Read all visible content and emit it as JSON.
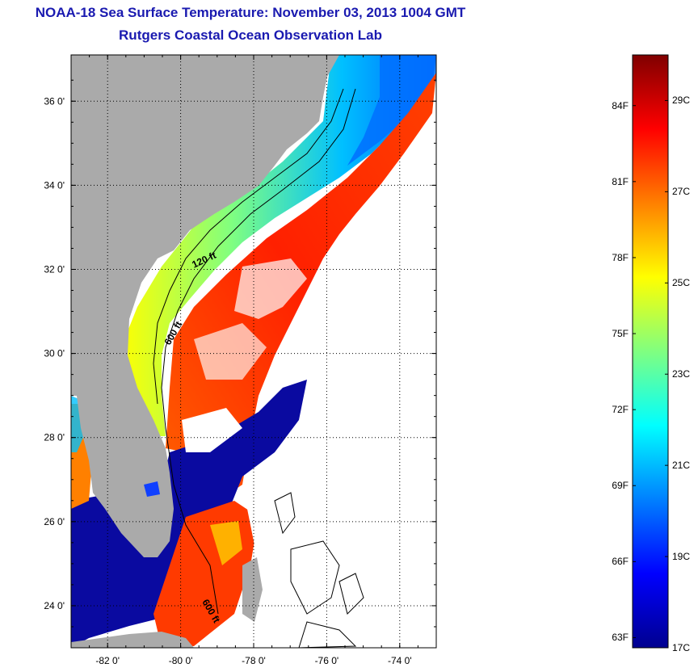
{
  "header": {
    "title": "NOAA-18 Sea Surface Temperature:  November 03, 2013 1004 GMT",
    "subtitle": "Rutgers Coastal Ocean Observation Lab"
  },
  "map": {
    "lon_range": [
      -83,
      -73
    ],
    "lat_range": [
      23,
      37.1
    ],
    "lat_ticks": [
      {
        "value": 36,
        "label": "36 0'"
      },
      {
        "value": 34,
        "label": "34 0'"
      },
      {
        "value": 32,
        "label": "32 0'"
      },
      {
        "value": 30,
        "label": "30 0'"
      },
      {
        "value": 28,
        "label": "28 0'"
      },
      {
        "value": 26,
        "label": "26 0'"
      },
      {
        "value": 24,
        "label": "24 0'"
      }
    ],
    "lon_ticks": [
      {
        "value": -82,
        "label": "-82 0'"
      },
      {
        "value": -80,
        "label": "-80 0'"
      },
      {
        "value": -78,
        "label": "-78 0'"
      },
      {
        "value": -76,
        "label": "-76 0'"
      },
      {
        "value": -74,
        "label": "-74 0'"
      }
    ],
    "contour_labels": [
      {
        "text": "120 ft"
      },
      {
        "text": "600 ft"
      },
      {
        "text": "600 ft"
      }
    ],
    "colors": {
      "land": "#aaaaaa",
      "cloud": "#ffffff",
      "gridline": "#000000"
    }
  },
  "colorbar": {
    "range_c": [
      17,
      30
    ],
    "fahrenheit_labels": [
      {
        "value": 84,
        "label": "84F"
      },
      {
        "value": 81,
        "label": "81F"
      },
      {
        "value": 78,
        "label": "78F"
      },
      {
        "value": 75,
        "label": "75F"
      },
      {
        "value": 72,
        "label": "72F"
      },
      {
        "value": 69,
        "label": "69F"
      },
      {
        "value": 66,
        "label": "66F"
      },
      {
        "value": 63,
        "label": "63F"
      }
    ],
    "celsius_labels": [
      {
        "value": 29,
        "label": "29C"
      },
      {
        "value": 27,
        "label": "27C"
      },
      {
        "value": 25,
        "label": "25C"
      },
      {
        "value": 23,
        "label": "23C"
      },
      {
        "value": 21,
        "label": "21C"
      },
      {
        "value": 19,
        "label": "19C"
      },
      {
        "value": 17,
        "label": "17C"
      }
    ],
    "colormap": [
      "#00008f",
      "#0000ff",
      "#0080ff",
      "#00ffff",
      "#80ff80",
      "#ffff00",
      "#ff8000",
      "#ff0000",
      "#800000"
    ]
  }
}
